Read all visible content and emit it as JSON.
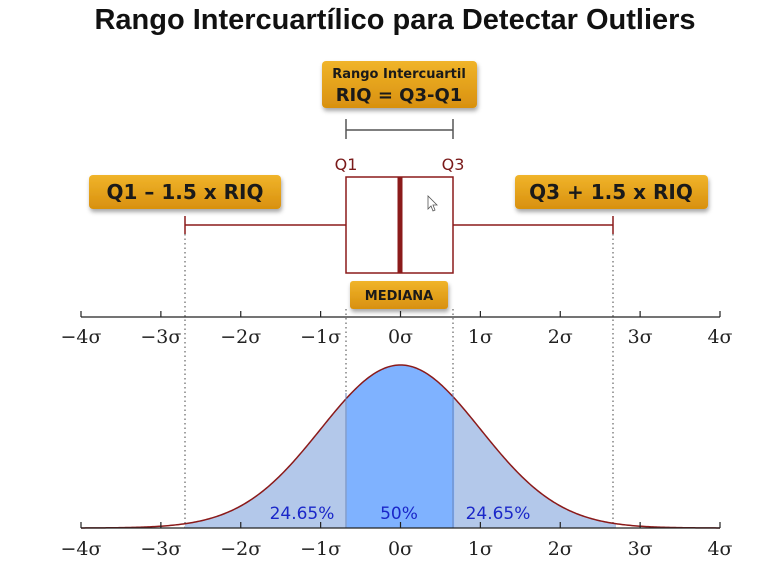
{
  "title": "Rango Intercuartílico para Detectar Outliers",
  "labels": {
    "riq_line1": "Rango Intercuartil",
    "riq_line2": "RIQ = Q3-Q1",
    "lower_fence": "Q1 – 1.5 x RIQ",
    "upper_fence": "Q3 + 1.5 x RIQ",
    "q1": "Q1",
    "q3": "Q3",
    "median": "MEDIANA"
  },
  "axis_ticks": [
    "−4σ",
    "−3σ",
    "−2σ",
    "−1σ",
    "0σ",
    "1σ",
    "2σ",
    "3σ",
    "4σ"
  ],
  "regions": {
    "left": "24.65%",
    "middle": "50%",
    "right": "24.65%"
  },
  "colors": {
    "pill": "#e3a11d",
    "box_line": "#8b1a1a",
    "curve": "#8b1a1a",
    "center_fill": "#7fb2ff",
    "side_fill": "#b3c8ea",
    "pct_text": "#1a27c9"
  },
  "icons": {
    "cursor": "cursor-pointer-icon"
  }
}
